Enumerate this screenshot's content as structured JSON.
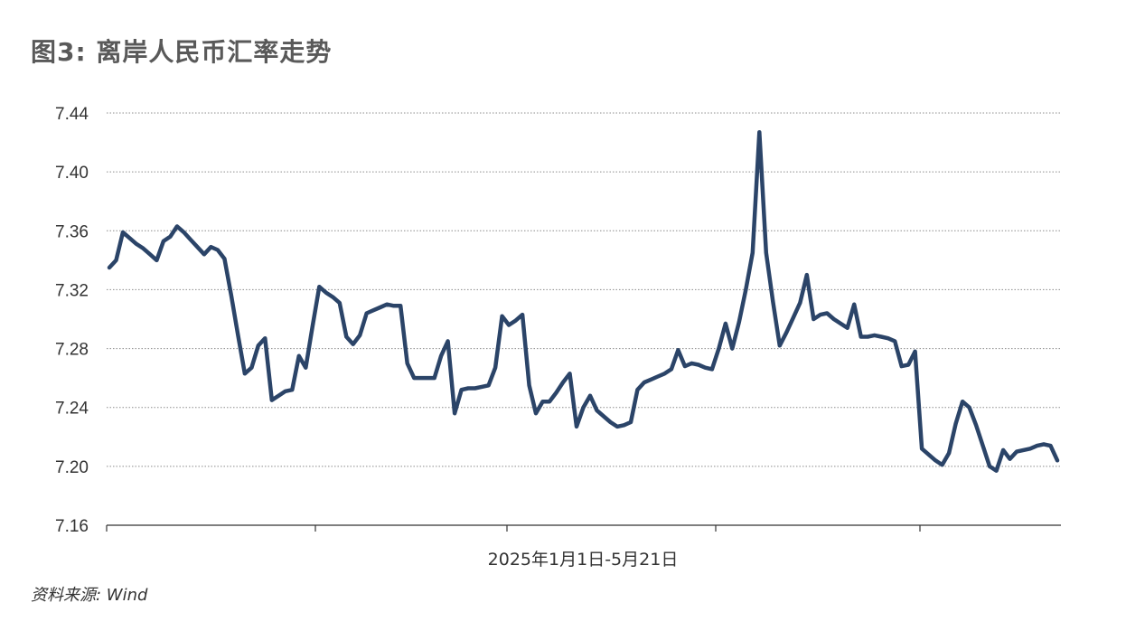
{
  "title": "图3: 离岸人民币汇率走势",
  "source": "资料来源: Wind",
  "chart_data": {
    "type": "line",
    "title": "图3: 离岸人民币汇率走势",
    "xlabel": "2025年1月1日-5月21日",
    "ylabel": "",
    "ylim": [
      7.16,
      7.44
    ],
    "yticks": [
      "7.16",
      "7.20",
      "7.24",
      "7.28",
      "7.32",
      "7.36",
      "7.40",
      "7.44"
    ],
    "grid": "horizontal dotted",
    "series": [
      {
        "color": "#2b4468",
        "values": [
          7.335,
          7.34,
          7.359,
          7.355,
          7.351,
          7.348,
          7.344,
          7.34,
          7.353,
          7.356,
          7.363,
          7.359,
          7.354,
          7.349,
          7.344,
          7.349,
          7.347,
          7.341,
          7.316,
          7.289,
          7.263,
          7.267,
          7.282,
          7.287,
          7.245,
          7.248,
          7.251,
          7.252,
          7.275,
          7.267,
          7.295,
          7.322,
          7.318,
          7.315,
          7.311,
          7.288,
          7.283,
          7.289,
          7.304,
          7.306,
          7.308,
          7.31,
          7.309,
          7.309,
          7.27,
          7.26,
          7.26,
          7.26,
          7.26,
          7.275,
          7.285,
          7.236,
          7.252,
          7.253,
          7.253,
          7.254,
          7.255,
          7.267,
          7.302,
          7.296,
          7.299,
          7.303,
          7.255,
          7.236,
          7.244,
          7.244,
          7.25,
          7.257,
          7.263,
          7.227,
          7.24,
          7.248,
          7.238,
          7.234,
          7.23,
          7.227,
          7.228,
          7.23,
          7.252,
          7.257,
          7.259,
          7.261,
          7.263,
          7.266,
          7.279,
          7.268,
          7.27,
          7.269,
          7.267,
          7.266,
          7.28,
          7.297,
          7.28,
          7.298,
          7.32,
          7.345,
          7.427,
          7.345,
          7.312,
          7.282,
          7.291,
          7.301,
          7.311,
          7.33,
          7.3,
          7.303,
          7.304,
          7.3,
          7.297,
          7.294,
          7.31,
          7.288,
          7.288,
          7.289,
          7.288,
          7.287,
          7.285,
          7.268,
          7.269,
          7.278,
          7.212,
          7.208,
          7.204,
          7.201,
          7.209,
          7.229,
          7.244,
          7.24,
          7.228,
          7.214,
          7.2,
          7.197,
          7.211,
          7.205,
          7.21,
          7.211,
          7.212,
          7.214,
          7.215,
          7.214,
          7.204
        ]
      }
    ]
  }
}
